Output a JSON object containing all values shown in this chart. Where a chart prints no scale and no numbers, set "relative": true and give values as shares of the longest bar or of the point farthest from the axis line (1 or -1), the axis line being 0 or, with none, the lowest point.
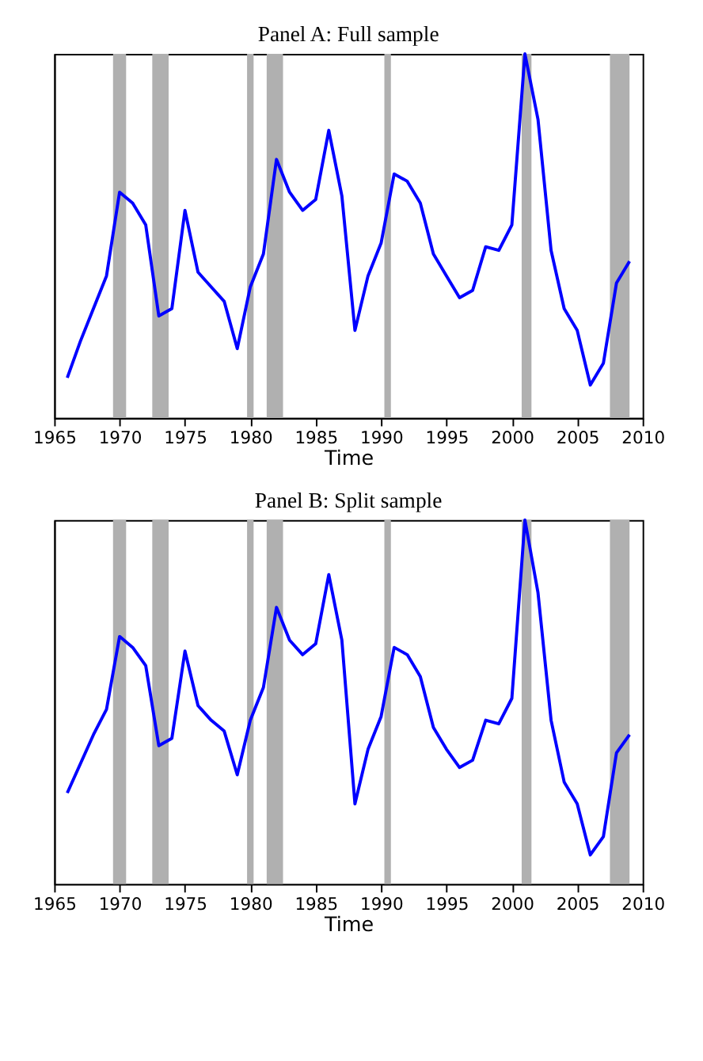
{
  "chart_data": [
    {
      "type": "line",
      "title": "Panel A: Full sample",
      "xlabel": "Time",
      "relative": true,
      "grid": false,
      "marker": "none",
      "line_style": "solid",
      "tick_labels": "x",
      "x": [
        1966,
        1967,
        1968,
        1969,
        1970,
        1971,
        1972,
        1973,
        1974,
        1975,
        1976,
        1977,
        1978,
        1979,
        1980,
        1981,
        1982,
        1983,
        1984,
        1985,
        1986,
        1987,
        1988,
        1989,
        1990,
        1991,
        1992,
        1993,
        1994,
        1995,
        1996,
        1997,
        1998,
        1999,
        2000,
        2001,
        2002,
        2003,
        2004,
        2005,
        2006,
        2007,
        2008,
        2009
      ],
      "xlim": [
        1965,
        2010
      ],
      "xticks": [
        1965,
        1970,
        1975,
        1980,
        1985,
        1990,
        1995,
        2000,
        2005,
        2010
      ],
      "series": [
        {
          "color": "#0000ff",
          "values": [
            0.11,
            0.21,
            0.3,
            0.39,
            0.62,
            0.59,
            0.53,
            0.28,
            0.3,
            0.57,
            0.4,
            0.36,
            0.32,
            0.19,
            0.36,
            0.45,
            0.71,
            0.62,
            0.57,
            0.6,
            0.79,
            0.61,
            0.24,
            0.39,
            0.48,
            0.67,
            0.65,
            0.59,
            0.45,
            0.39,
            0.33,
            0.35,
            0.47,
            0.46,
            0.53,
            1,
            0.82,
            0.46,
            0.3,
            0.24,
            0.09,
            0.15,
            0.37,
            0.43
          ]
        }
      ],
      "bands": [
        {
          "axis": "x",
          "from": 1969.5,
          "to": 1970.5,
          "color": "#b0b0b0"
        },
        {
          "axis": "x",
          "from": 1972.5,
          "to": 1973.75,
          "color": "#b0b0b0"
        },
        {
          "axis": "x",
          "from": 1979.75,
          "to": 1980.25,
          "color": "#b0b0b0"
        },
        {
          "axis": "x",
          "from": 1981.25,
          "to": 1982.5,
          "color": "#b0b0b0"
        },
        {
          "axis": "x",
          "from": 1990.25,
          "to": 1990.75,
          "color": "#b0b0b0"
        },
        {
          "axis": "x",
          "from": 2000.75,
          "to": 2001.5,
          "color": "#b0b0b0"
        },
        {
          "axis": "x",
          "from": 2007.5,
          "to": 2009,
          "color": "#b0b0b0"
        }
      ]
    },
    {
      "type": "line",
      "title": "Panel B: Split sample",
      "xlabel": "Time",
      "relative": true,
      "grid": false,
      "marker": "none",
      "line_style": "solid",
      "tick_labels": "x",
      "x": [
        1966,
        1967,
        1968,
        1969,
        1970,
        1971,
        1972,
        1973,
        1974,
        1975,
        1976,
        1977,
        1978,
        1979,
        1980,
        1981,
        1982,
        1983,
        1984,
        1985,
        1986,
        1987,
        1988,
        1989,
        1990,
        1991,
        1992,
        1993,
        1994,
        1995,
        1996,
        1997,
        1998,
        1999,
        2000,
        2001,
        2002,
        2003,
        2004,
        2005,
        2006,
        2007,
        2008,
        2009
      ],
      "xlim": [
        1965,
        2010
      ],
      "xticks": [
        1965,
        1970,
        1975,
        1980,
        1985,
        1990,
        1995,
        2000,
        2005,
        2010
      ],
      "series": [
        {
          "color": "#0000ff",
          "values": [
            0.25,
            0.33,
            0.41,
            0.48,
            0.68,
            0.65,
            0.6,
            0.38,
            0.4,
            0.64,
            0.49,
            0.45,
            0.42,
            0.3,
            0.45,
            0.54,
            0.76,
            0.67,
            0.63,
            0.66,
            0.85,
            0.67,
            0.22,
            0.37,
            0.46,
            0.65,
            0.63,
            0.57,
            0.43,
            0.37,
            0.32,
            0.34,
            0.45,
            0.44,
            0.51,
            1,
            0.8,
            0.45,
            0.28,
            0.22,
            0.08,
            0.13,
            0.36,
            0.41
          ]
        }
      ],
      "bands": [
        {
          "axis": "x",
          "from": 1969.5,
          "to": 1970.5,
          "color": "#b0b0b0"
        },
        {
          "axis": "x",
          "from": 1972.5,
          "to": 1973.75,
          "color": "#b0b0b0"
        },
        {
          "axis": "x",
          "from": 1979.75,
          "to": 1980.25,
          "color": "#b0b0b0"
        },
        {
          "axis": "x",
          "from": 1981.25,
          "to": 1982.5,
          "color": "#b0b0b0"
        },
        {
          "axis": "x",
          "from": 1990.25,
          "to": 1990.75,
          "color": "#b0b0b0"
        },
        {
          "axis": "x",
          "from": 2000.75,
          "to": 2001.5,
          "color": "#b0b0b0"
        },
        {
          "axis": "x",
          "from": 2007.5,
          "to": 2009,
          "color": "#b0b0b0"
        }
      ]
    }
  ]
}
